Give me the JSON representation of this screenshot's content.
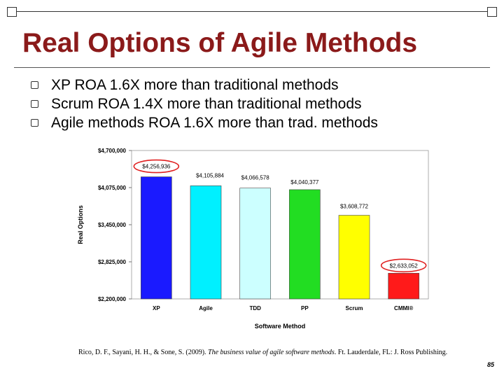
{
  "slide": {
    "title": "Real Options of Agile Methods",
    "bullets": [
      "XP ROA 1.6X more than traditional methods",
      "Scrum ROA 1.4X more than traditional methods",
      "Agile methods ROA 1.6X more than trad. methods"
    ],
    "citation": {
      "before": "Rico, D. F., Sayani, H. H., & Sone, S. (2009). ",
      "italic": "The business value of agile software methods",
      "after": ". Ft. Lauderdale, FL: J. Ross Publishing."
    },
    "page_number": "85"
  },
  "chart_data": {
    "type": "bar",
    "title": "",
    "xlabel": "Software Method",
    "ylabel": "Real Options",
    "categories": [
      "XP",
      "Agile",
      "TDD",
      "PP",
      "Scrum",
      "CMMI®"
    ],
    "values": [
      4256936,
      4105884,
      4066578,
      4040377,
      3608772,
      2633052
    ],
    "value_labels": [
      "$4,256,936",
      "$4,105,884",
      "$4,066,578",
      "$4,040,377",
      "$3,608,772",
      "$2,633,052"
    ],
    "bar_colors": [
      "#1a1aff",
      "#00f0ff",
      "#ccffff",
      "#22dd22",
      "#ffff00",
      "#ff1a1a"
    ],
    "highlighted": [
      0,
      5
    ],
    "highlight_color": "#e02020",
    "ylim": [
      2200000,
      4700000
    ],
    "yticks": [
      2200000,
      2825000,
      3450000,
      4075000,
      4700000
    ],
    "ytick_labels": [
      "$2,200,000",
      "$2,825,000",
      "$3,450,000",
      "$4,075,000",
      "$4,700,000"
    ],
    "grid": false,
    "legend": "none"
  }
}
